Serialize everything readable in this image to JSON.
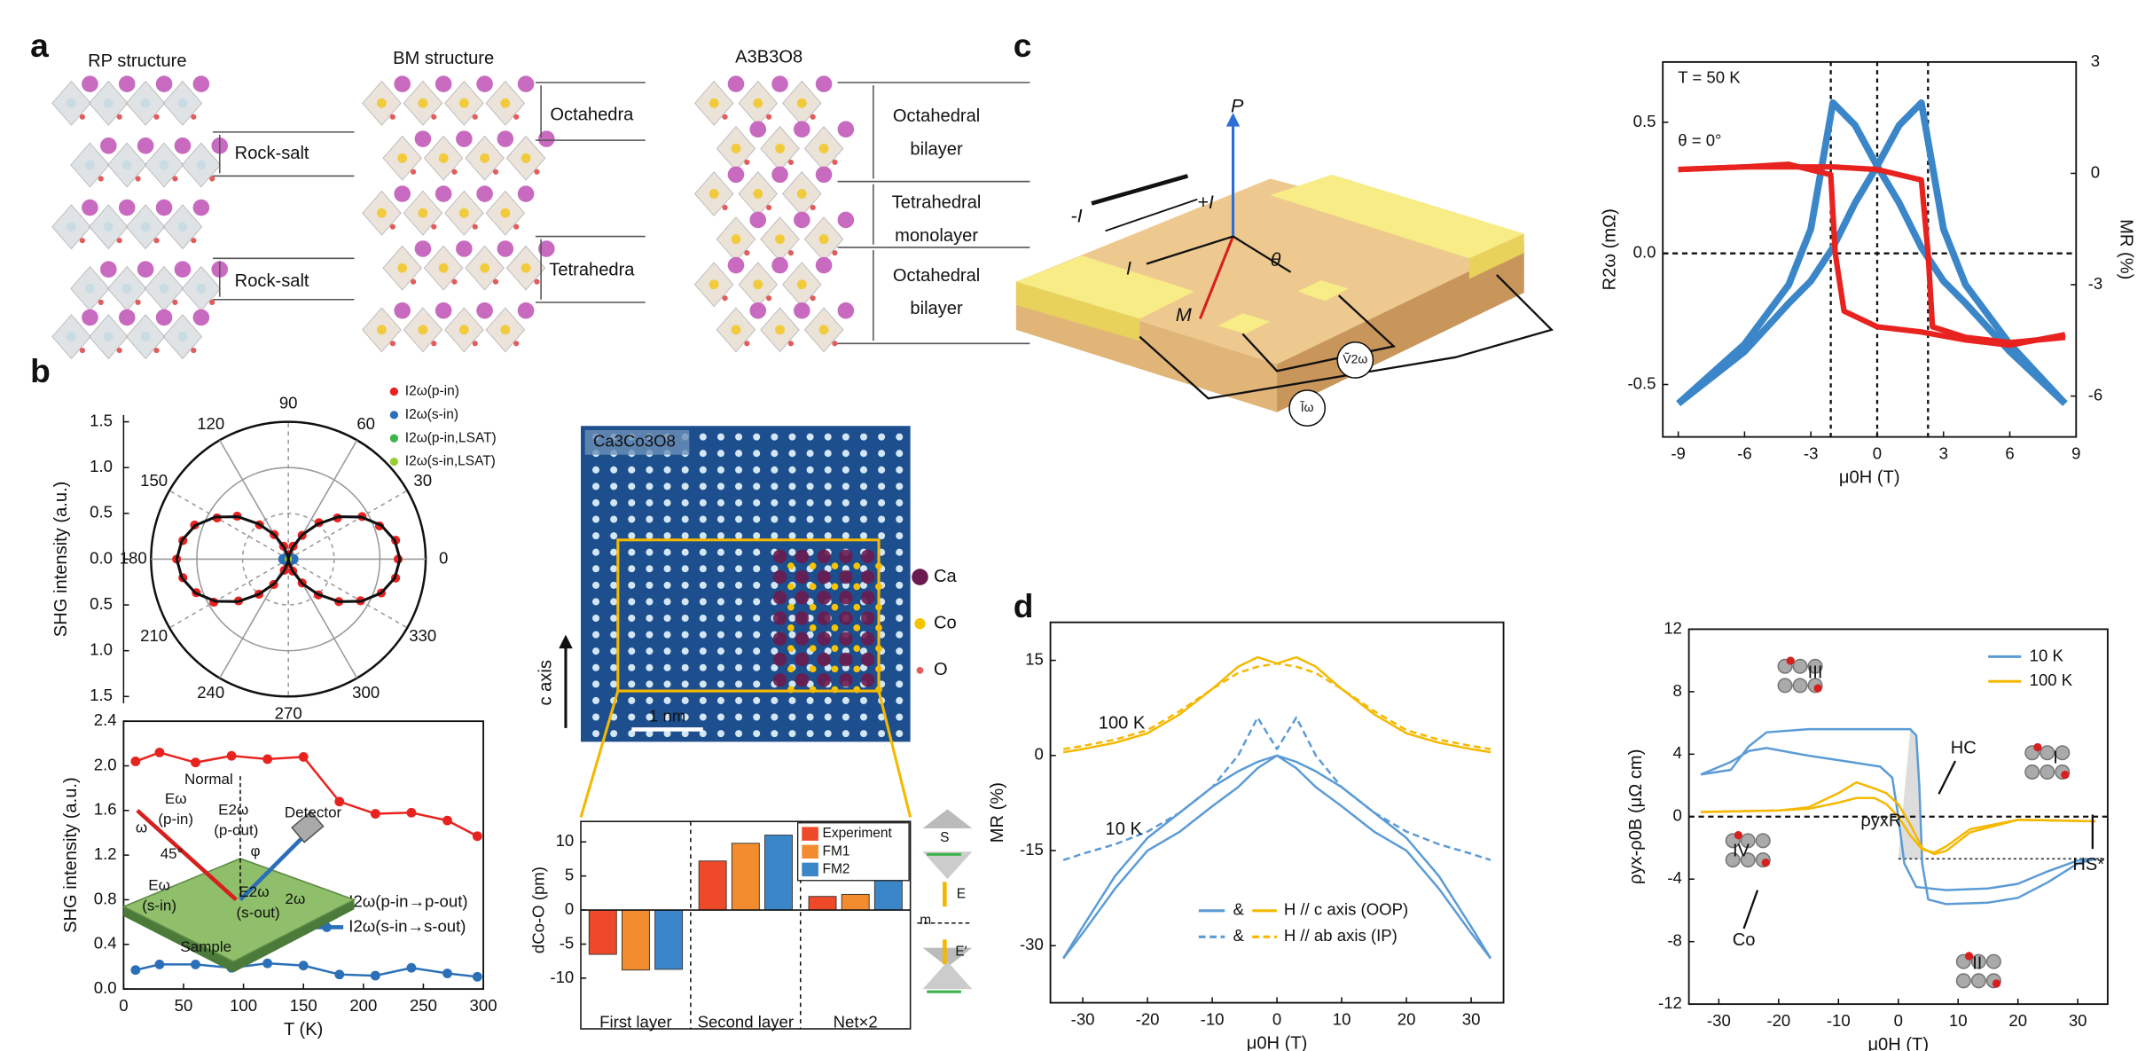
{
  "panel_labels": [
    "a",
    "b",
    "c",
    "d"
  ],
  "structures": [
    {
      "title": "RP structure",
      "labels": [
        [
          "Rock-salt"
        ],
        [
          "Rock-salt"
        ]
      ]
    },
    {
      "title": "BM structure",
      "labels": [
        [
          "Octahedra"
        ],
        [
          "Tetrahedra"
        ]
      ]
    },
    {
      "title": "A3B3O8",
      "labels": [
        [
          "Octahedral",
          "bilayer"
        ],
        [
          "Tetrahedral",
          "monolayer"
        ],
        [
          "Octahedral",
          "bilayer"
        ]
      ]
    }
  ],
  "setup": {
    "labels": [
      "Normal",
      "Eω",
      "(p-in)",
      "E2ω",
      "(p-out)",
      "Detector",
      "ω",
      "φ",
      "45°",
      "Eω",
      "(s-in)",
      "E2ω",
      "(s-out)",
      "2ω",
      "Sample"
    ]
  },
  "stem": {
    "title": "Ca3Co3O8",
    "scale_bar": "1 nm",
    "axis": "c axis",
    "legend": [
      "Ca",
      "Co",
      "O"
    ]
  },
  "side_labels": [
    "S",
    "E",
    "m",
    "E′"
  ],
  "device": {
    "labels": [
      "P",
      "-I",
      "+I",
      "I",
      "θ",
      "M",
      "Ṽ2ω",
      "Ĩω"
    ]
  },
  "chart_data": [
    {
      "type": "polar",
      "ylabel": "SHG intensity (a.u.)",
      "theta": [
        0,
        10,
        20,
        30,
        40,
        50,
        60,
        70,
        80,
        90,
        100,
        110,
        120,
        130,
        140,
        150,
        160,
        170,
        180,
        190,
        200,
        210,
        220,
        230,
        240,
        250,
        260,
        270,
        280,
        290,
        300,
        310,
        320,
        330,
        340,
        350
      ],
      "thetaticks": [
        0,
        30,
        60,
        90,
        120,
        150,
        180,
        210,
        240,
        270,
        300,
        330
      ],
      "rlim": [
        0,
        1.5
      ],
      "rticks": [
        {
          "value": 0,
          "label": "0.0"
        },
        0.5,
        {
          "value": 1,
          "label": "1.0"
        },
        1.5
      ],
      "series": [
        {
          "name": "I2ω(p-in)",
          "color": "#e8231f",
          "marker": "circle",
          "values": [
            1.2,
            1.19,
            1.06,
            0.93,
            0.7,
            0.52,
            0.3,
            0.15,
            0.05,
            0.02,
            0.04,
            0.15,
            0.31,
            0.49,
            0.73,
            0.9,
            1.09,
            1.17,
            1.22,
            1.17,
            1.07,
            0.94,
            0.71,
            0.5,
            0.32,
            0.13,
            0.05,
            0.02,
            0.04,
            0.14,
            0.3,
            0.51,
            0.72,
            0.91,
            1.08,
            1.19
          ]
        },
        {
          "name": "I2ω(s-in)",
          "color": "#2a6fb8",
          "marker": "square",
          "values": [
            0.08,
            0.08,
            0.07,
            0.06,
            0.05,
            0.04,
            0.03,
            0.02,
            0.02,
            0.02,
            0.02,
            0.02,
            0.03,
            0.04,
            0.05,
            0.06,
            0.07,
            0.08,
            0.08,
            0.08,
            0.07,
            0.06,
            0.05,
            0.04,
            0.03,
            0.02,
            0.02,
            0.02,
            0.02,
            0.02,
            0.03,
            0.04,
            0.05,
            0.06,
            0.07,
            0.08
          ]
        },
        {
          "name": "I2ω(p-in,LSAT)",
          "color": "#3cb44b",
          "marker": "triangle",
          "theta": [
            0,
            90,
            180,
            270
          ],
          "values": [
            0.01,
            0.01,
            0.01,
            0.01
          ]
        },
        {
          "name": "I2ω(s-in,LSAT)",
          "color": "#9acd32",
          "marker": "triangle",
          "theta": [
            45,
            135,
            225,
            315
          ],
          "values": [
            0.01,
            0.01,
            0.01,
            0.01
          ]
        },
        {
          "color": "#111111",
          "marker": "none",
          "values": [
            1.22,
            1.18,
            1.08,
            0.92,
            0.72,
            0.5,
            0.31,
            0.14,
            0.04,
            0,
            0.04,
            0.14,
            0.31,
            0.5,
            0.72,
            0.92,
            1.08,
            1.18,
            1.22,
            1.18,
            1.08,
            0.92,
            0.72,
            0.5,
            0.31,
            0.14,
            0.04,
            0,
            0.04,
            0.14,
            0.31,
            0.5,
            0.72,
            0.92,
            1.08,
            1.18
          ]
        }
      ]
    },
    {
      "type": "line",
      "xlabel": "T (K)",
      "ylabel": "SHG intensity (a.u.)",
      "x": [
        10,
        30,
        60,
        90,
        120,
        150,
        180,
        210,
        240,
        270,
        295
      ],
      "xlim": [
        0,
        300
      ],
      "xticks": [
        0,
        50,
        100,
        150,
        200,
        250,
        300
      ],
      "ylim": [
        0,
        2.4
      ],
      "yticks": [
        {
          "value": 0,
          "label": "0.0"
        },
        0.4,
        0.8,
        1.2,
        1.6,
        {
          "value": 2,
          "label": "2.0"
        },
        2.4
      ],
      "series": [
        {
          "name": "I2ω(p-in→p-out)",
          "color": "#e8231f",
          "marker": "circle",
          "values": [
            2.04,
            2.12,
            2.03,
            2.09,
            2.06,
            2.08,
            1.68,
            1.57,
            1.58,
            1.51,
            1.37
          ]
        },
        {
          "name": "I2ω(s-in→s-out)",
          "color": "#2a6fb8",
          "marker": "circle",
          "values": [
            0.17,
            0.22,
            0.22,
            0.19,
            0.23,
            0.21,
            0.13,
            0.12,
            0.19,
            0.14,
            0.11
          ]
        }
      ]
    },
    {
      "type": "bar",
      "ylabel": "dCo-O (pm)",
      "categories": [
        "First layer",
        "Second layer",
        "Net×2"
      ],
      "ylim": [
        -13,
        13
      ],
      "yticks": [
        -10,
        -5,
        0,
        5,
        10
      ],
      "series": [
        {
          "name": "Experiment",
          "color": "#ee4a2a",
          "values": [
            -6.5,
            7.2,
            2
          ]
        },
        {
          "name": "FM1",
          "color": "#f28c2e",
          "values": [
            -8.8,
            9.8,
            2.3
          ]
        },
        {
          "name": "FM2",
          "color": "#3a86c8",
          "values": [
            -8.7,
            11,
            5
          ]
        }
      ]
    },
    {
      "type": "line",
      "xlabel": "μ0H (T)",
      "ylabel": "R2ω (mΩ)",
      "y2label": "MR (%)",
      "ylabel_color": "#e8231f",
      "y2_color": "#3a86c8",
      "xlim": [
        -9.7,
        9
      ],
      "xticks": [
        -9,
        -6,
        -3,
        0,
        3,
        6,
        9
      ],
      "ylim": [
        -0.7,
        0.73
      ],
      "yticks": [
        -0.5,
        {
          "value": 0,
          "label": "0.0"
        },
        0.5
      ],
      "y2lim": [
        -7.1,
        3
      ],
      "y2ticks": [
        -6,
        -3,
        0,
        3
      ],
      "vlines": [
        -2.1,
        0,
        2.3
      ],
      "hlines": [
        0
      ],
      "annotations": [
        "T = 50 K",
        "θ = 0°"
      ],
      "series": [
        {
          "color": "#3a86c8",
          "width": 5,
          "axis": "y2",
          "x": [
            -9,
            -6,
            -4,
            -3,
            -2,
            -1,
            0,
            1,
            2,
            3,
            4,
            6,
            8.5
          ],
          "values": [
            -6.2,
            -4.6,
            -3,
            -1.5,
            1.9,
            1.3,
            0.2,
            -0.8,
            -2,
            -2.9,
            -3.5,
            -4.8,
            -6.2
          ]
        },
        {
          "color": "#3a86c8",
          "width": 5,
          "axis": "y2",
          "x": [
            -9,
            -6,
            -4,
            -3,
            -2,
            -1,
            0,
            1,
            2,
            3,
            4,
            6,
            8.5
          ],
          "values": [
            -6.2,
            -4.8,
            -3.5,
            -2.9,
            -2,
            -0.8,
            0.2,
            1.3,
            1.9,
            -1.5,
            -3,
            -4.6,
            -6.2
          ]
        },
        {
          "color": "#e8231f",
          "width": 4,
          "x": [
            -9,
            -6,
            -4,
            -2,
            0,
            2,
            2.3,
            2.5,
            4,
            6,
            8.5
          ],
          "values": [
            0.32,
            0.33,
            0.33,
            0.33,
            0.32,
            0.28,
            0,
            -0.28,
            -0.32,
            -0.34,
            -0.32
          ]
        },
        {
          "color": "#e8231f",
          "width": 4,
          "x": [
            8.5,
            6,
            4,
            2,
            0,
            -1.5,
            -1.9,
            -2.1,
            -4,
            -6,
            -9
          ],
          "values": [
            -0.31,
            -0.35,
            -0.33,
            -0.3,
            -0.28,
            -0.22,
            0,
            0.3,
            0.34,
            0.33,
            0.32
          ]
        }
      ]
    },
    {
      "type": "line",
      "xlabel": "μ0H (T)",
      "ylabel": "MR (%)",
      "xlim": [
        -35,
        35
      ],
      "xticks": [
        -30,
        -20,
        -10,
        0,
        10,
        20,
        30
      ],
      "ylim": [
        -39,
        21
      ],
      "yticks": [
        -30,
        -15,
        0,
        15
      ],
      "annotations": [
        "100 K",
        "10 K"
      ],
      "legend": [
        {
          "label": "H // c axis (OOP)",
          "dash": false
        },
        {
          "label": "H // ab axis (IP)",
          "dash": true
        }
      ],
      "legend_joiner": "&",
      "series": [
        {
          "color": "#f5b800",
          "x": [
            -33,
            -30,
            -25,
            -20,
            -15,
            -10,
            -6,
            -3,
            0,
            3,
            6,
            10,
            15,
            20,
            25,
            30,
            33
          ],
          "values": [
            0.5,
            1,
            2,
            3.5,
            6.5,
            10.5,
            14,
            15.5,
            14.5,
            15.5,
            14,
            10.5,
            6.5,
            3.5,
            2,
            1,
            0.5
          ]
        },
        {
          "color": "#f5b800",
          "dash": true,
          "x": [
            -33,
            -30,
            -25,
            -20,
            -15,
            -10,
            -6,
            -3,
            0,
            3,
            6,
            10,
            15,
            20,
            25,
            30,
            33
          ],
          "values": [
            1,
            1.5,
            2.5,
            4,
            7,
            10.5,
            13,
            14,
            14.5,
            14,
            13,
            10.5,
            7,
            4,
            2.5,
            1.5,
            1
          ]
        },
        {
          "color": "#5b9bd5",
          "x": [
            -33,
            -30,
            -25,
            -20,
            -15,
            -10,
            -6,
            -3,
            0,
            3,
            6,
            10,
            15,
            20,
            25,
            30,
            33
          ],
          "values": [
            -32,
            -27,
            -19,
            -13,
            -9,
            -5,
            -2.5,
            -1,
            0,
            -1,
            -2.5,
            -5,
            -9,
            -13,
            -19,
            -27,
            -32
          ]
        },
        {
          "color": "#5b9bd5",
          "x": [
            -33,
            -30,
            -25,
            -20,
            -15,
            -10,
            -6,
            -3,
            0,
            3,
            6,
            10,
            15,
            20,
            25,
            30,
            33
          ],
          "values": [
            -32,
            -28,
            -21,
            -15,
            -12,
            -8,
            -5,
            -2,
            0,
            -2,
            -5,
            -8,
            -12,
            -15,
            -21,
            -28,
            -32
          ]
        },
        {
          "color": "#5b9bd5",
          "dash": true,
          "x": [
            -33,
            -30,
            -25,
            -20,
            -15,
            -10,
            -6,
            -3,
            0,
            3,
            6,
            10,
            15,
            20,
            25,
            30,
            33
          ],
          "values": [
            -16.5,
            -15.5,
            -14,
            -12,
            -9,
            -5,
            0,
            6,
            1,
            6,
            0,
            -5,
            -9,
            -12,
            -14,
            -15.5,
            -16.5
          ]
        }
      ]
    },
    {
      "type": "line",
      "xlabel": "μ0H (T)",
      "ylabel": "ρyx-ρ0B (μΩ cm)",
      "xlim": [
        -35,
        35
      ],
      "xticks": [
        -30,
        -20,
        -10,
        0,
        10,
        20,
        30
      ],
      "ylim": [
        -12,
        12
      ],
      "yticks": [
        -12,
        -8,
        -4,
        0,
        4,
        8,
        12
      ],
      "hlines": [
        0
      ],
      "shade_level": -2.7,
      "annotations": [
        "HC",
        "ρyxR",
        "HS*",
        "I",
        "II",
        "III",
        "IV",
        "Co"
      ],
      "series": [
        {
          "name": "10 K",
          "color": "#5b9bd5",
          "x": [
            -33,
            -28,
            -25,
            -22,
            -15,
            -5,
            2,
            3,
            3.5,
            4,
            5,
            8,
            15,
            20,
            25,
            30,
            33
          ],
          "values": [
            2.7,
            3,
            4.5,
            5.4,
            5.6,
            5.6,
            5.6,
            5.2,
            2,
            -3,
            -5.3,
            -5.6,
            -5.5,
            -5.2,
            -4.2,
            -3,
            -2.7
          ]
        },
        {
          "color": "#5b9bd5",
          "x": [
            -33,
            -28,
            -25,
            -22,
            -15,
            -8,
            -3,
            -1,
            0,
            1,
            3,
            8,
            15,
            20,
            25,
            30,
            33
          ],
          "values": [
            2.7,
            3.5,
            4.2,
            4.4,
            3.9,
            3.5,
            3.2,
            2.5,
            0,
            -3,
            -4.5,
            -4.7,
            -4.6,
            -4.3,
            -3.5,
            -2.8,
            -2.7
          ]
        },
        {
          "name": "100 K",
          "color": "#f5b800",
          "x": [
            -33,
            -20,
            -15,
            -10,
            -7,
            -4,
            -2,
            0,
            2,
            4,
            6,
            8,
            12,
            20,
            33
          ],
          "values": [
            0.3,
            0.4,
            0.6,
            1.5,
            2.2,
            1.8,
            1.5,
            0.8,
            -0.5,
            -2,
            -2.4,
            -2.2,
            -1,
            -0.2,
            -0.3
          ]
        },
        {
          "color": "#f5b800",
          "x": [
            -33,
            -20,
            -15,
            -10,
            -7,
            -4,
            -2,
            0,
            2,
            4,
            6,
            8,
            12,
            20,
            33
          ],
          "values": [
            0.3,
            0.4,
            0.5,
            0.9,
            1.2,
            1.2,
            0.8,
            0,
            -1.2,
            -2.1,
            -2.3,
            -1.9,
            -0.8,
            -0.2,
            -0.3
          ]
        }
      ]
    }
  ]
}
